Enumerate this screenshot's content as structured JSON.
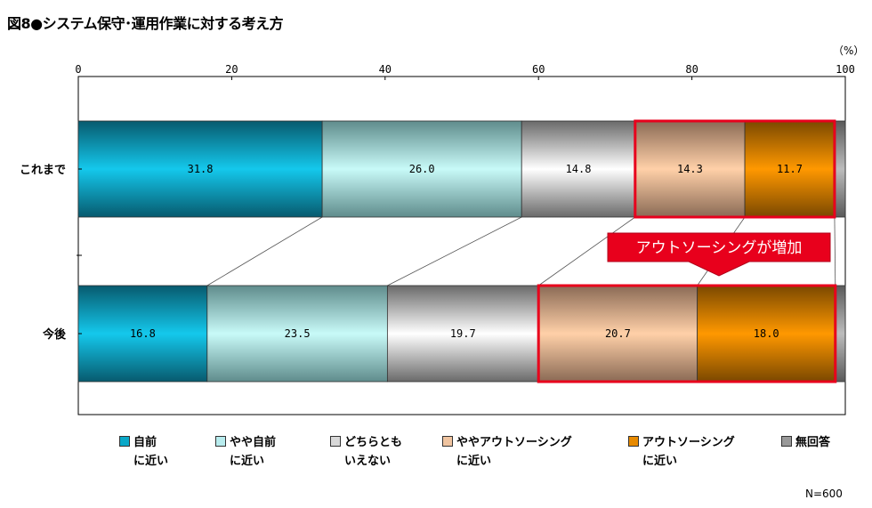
{
  "figure_title": "図8●システム保守･運用作業に対する考え方",
  "unit": "（%）",
  "n_label": "N=600",
  "callout": "アウトソーシングが増加",
  "colors": {
    "series": [
      "#0aa8c8",
      "#b8ecee",
      "#d8d8d8",
      "#f0c4a0",
      "#e88a00",
      "#999999"
    ],
    "highlight": "#e8001c"
  },
  "legend": [
    {
      "line1": "自前",
      "line2": "に近い"
    },
    {
      "line1": "やや自前",
      "line2": "に近い"
    },
    {
      "line1": "どちらとも",
      "line2": "いえない"
    },
    {
      "line1": "ややアウトソーシング",
      "line2": "に近い"
    },
    {
      "line1": "アウトソーシング",
      "line2": "に近い"
    },
    {
      "line1": "無回答",
      "line2": ""
    }
  ],
  "chart_data": {
    "type": "bar",
    "orientation": "horizontal",
    "stacked": true,
    "title": "図8●システム保守･運用作業に対する考え方",
    "xlabel": "（%）",
    "xlim": [
      0,
      100
    ],
    "xticks": [
      "0",
      "20",
      "40",
      "60",
      "80",
      "100"
    ],
    "categories": [
      "これまで",
      "今後"
    ],
    "series": [
      {
        "name": "自前に近い",
        "values": [
          31.8,
          16.8
        ]
      },
      {
        "name": "やや自前に近い",
        "values": [
          26.0,
          23.5
        ]
      },
      {
        "name": "どちらともいえない",
        "values": [
          14.8,
          19.7
        ]
      },
      {
        "name": "ややアウトソーシングに近い",
        "values": [
          14.3,
          20.7
        ]
      },
      {
        "name": "アウトソーシングに近い",
        "values": [
          11.7,
          18.0
        ]
      },
      {
        "name": "無回答",
        "values": [
          1.4,
          1.3
        ]
      }
    ],
    "data_labels": [
      [
        "31.8",
        "26.0",
        "14.8",
        "14.3",
        "11.7",
        ""
      ],
      [
        "16.8",
        "23.5",
        "19.7",
        "20.7",
        "18.0",
        ""
      ]
    ],
    "highlighted_series": [
      "ややアウトソーシングに近い",
      "アウトソーシングに近い"
    ],
    "grid": false,
    "legend_position": "bottom"
  }
}
